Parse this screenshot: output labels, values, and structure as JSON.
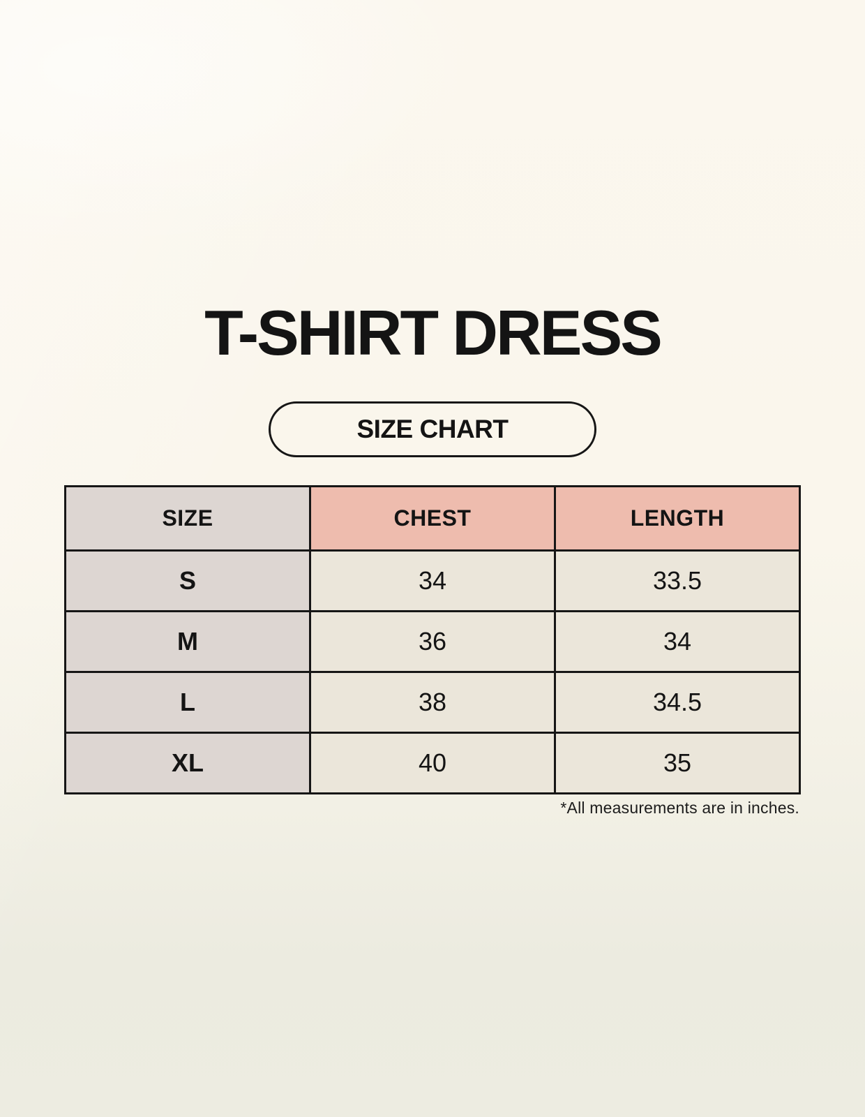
{
  "chart_data": {
    "type": "table",
    "title": "T-SHIRT DRESS",
    "subtitle": "SIZE CHART",
    "columns": [
      "SIZE",
      "CHEST",
      "LENGTH"
    ],
    "rows": [
      [
        "S",
        "34",
        "33.5"
      ],
      [
        "M",
        "36",
        "34"
      ],
      [
        "L",
        "38",
        "34.5"
      ],
      [
        "XL",
        "40",
        "35"
      ]
    ],
    "footnote": "*All measurements are in inches.",
    "units": "inches"
  },
  "colors": {
    "page_bg_top": "#fbf7ee",
    "page_bg_bottom": "#ecebe0",
    "size_column_bg": "#ddd6d2",
    "measure_header_bg": "#eebcae",
    "data_cell_bg": "#ebe6da",
    "table_border": "#161616",
    "text": "#141414"
  }
}
